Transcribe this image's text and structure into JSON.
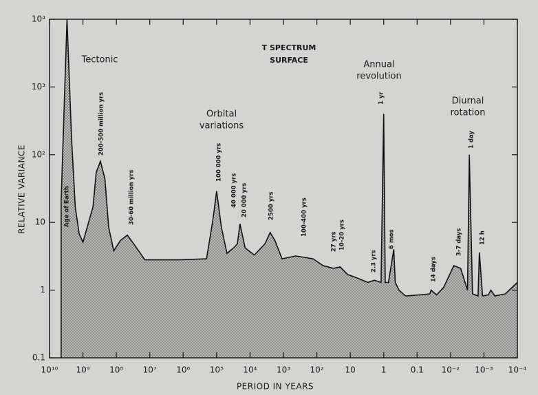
{
  "chart_data": {
    "type": "area",
    "title": [
      "T SPECTRUM",
      "SURFACE"
    ],
    "x_label": "PERIOD IN YEARS",
    "y_label": "RELATIVE VARIANCE",
    "x_log": true,
    "y_log": true,
    "grid": false,
    "color": "#9a9a98",
    "xlim": [
      10000000000.0,
      0.0001
    ],
    "ylim": [
      0.1,
      10000
    ],
    "xticks": [
      {
        "value": 10000000000.0,
        "label": "10¹⁰"
      },
      {
        "value": 1000000000.0,
        "label": "10⁹"
      },
      {
        "value": 100000000.0,
        "label": "10⁸"
      },
      {
        "value": 10000000.0,
        "label": "10⁷"
      },
      {
        "value": 1000000.0,
        "label": "10⁶"
      },
      {
        "value": 100000.0,
        "label": "10⁵"
      },
      {
        "value": 10000.0,
        "label": "10⁴"
      },
      {
        "value": 1000.0,
        "label": "10³"
      },
      {
        "value": 100,
        "label": "10²"
      },
      10,
      1,
      0.1,
      {
        "value": 0.01,
        "label": "10⁻²"
      },
      {
        "value": 0.001,
        "label": "10⁻³"
      },
      {
        "value": 0.0001,
        "label": "10⁻⁴"
      }
    ],
    "yticks": [
      0.1,
      1,
      10,
      {
        "value": 100,
        "label": "10²"
      },
      {
        "value": 1000,
        "label": "10³"
      },
      {
        "value": 10000,
        "label": "10⁴"
      }
    ],
    "x": [
      4500000000.0,
      3000000000.0,
      2200000000.0,
      1700000000.0,
      1300000000.0,
      1000000000.0,
      500000000.0,
      400000000.0,
      300000000.0,
      220000000.0,
      170000000.0,
      120000000.0,
      76000000.0,
      47000000.0,
      30000000.0,
      14000000.0,
      1300000.0,
      200000.0,
      130000.0,
      100000.0,
      72000.0,
      49000.0,
      31000.0,
      24000.0,
      20000.0,
      14000.0,
      7400,
      3600,
      2500,
      1800,
      1100,
      430,
      130,
      65,
      32,
      20,
      12,
      6,
      3,
      1.9,
      1.2,
      1,
      0.9,
      0.72,
      0.5,
      0.45,
      0.35,
      0.22,
      0.085,
      0.042,
      0.038,
      0.026,
      0.016,
      0.008,
      0.005,
      0.0031,
      0.00274,
      0.0022,
      0.0015,
      0.00137,
      0.0011,
      0.00074,
      0.00062,
      0.00047,
      0.00023,
      0.0001
    ],
    "values": [
      20,
      10000,
      180,
      17,
      6.8,
      5.1,
      17,
      55,
      80,
      44,
      8.5,
      3.8,
      5.4,
      6.5,
      4.8,
      2.8,
      2.8,
      2.9,
      10.7,
      29,
      8.5,
      3.5,
      4.2,
      4.8,
      9.5,
      4.2,
      3.3,
      4.8,
      7.1,
      5.4,
      2.9,
      3.2,
      2.9,
      2.3,
      2.1,
      2.2,
      1.7,
      1.5,
      1.3,
      1.4,
      1.3,
      400,
      1.3,
      1.3,
      4,
      1.3,
      1.0,
      0.82,
      0.85,
      0.88,
      1.0,
      0.85,
      1.1,
      2.3,
      2.1,
      1.0,
      100,
      0.88,
      0.82,
      3.6,
      0.82,
      0.85,
      1.0,
      0.82,
      0.88,
      1.3
    ],
    "regions": [
      [
        "Tectonic"
      ],
      [
        "Orbital",
        "variations"
      ],
      [
        "Annual",
        "revolution"
      ],
      [
        "Diurnal",
        "rotation"
      ]
    ],
    "peak_labels": [
      "Age of Earth",
      "200-500 million yrs",
      "30-60 million yrs",
      "100 000 yrs",
      "40 000 yrs",
      "20 000 yrs",
      "2500 yrs",
      "100-400 yrs",
      "27 yrs",
      "10-20 yrs",
      "2.3 yrs",
      "1 yr",
      "6 mos",
      "14 days",
      "3-7 days",
      "1 day",
      "12 h"
    ]
  }
}
